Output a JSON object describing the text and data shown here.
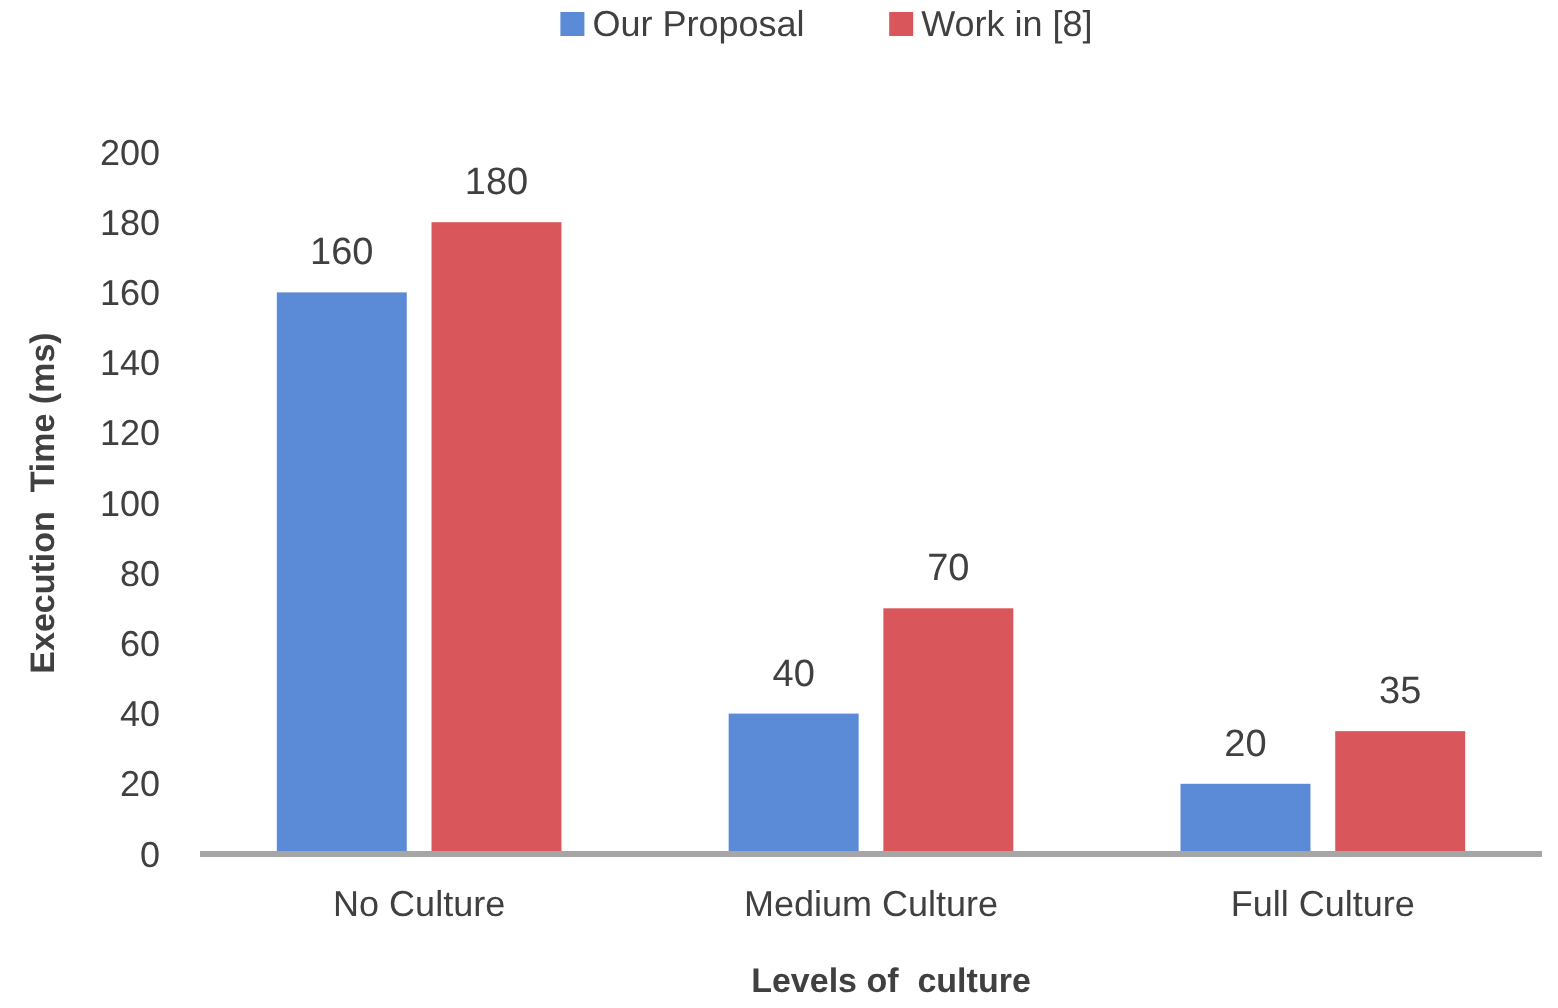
{
  "chart_data": {
    "type": "bar",
    "xlabel": "Levels of  culture",
    "ylabel": "Execution  Time (ms)",
    "categories": [
      "No Culture",
      "Medium Culture",
      "Full Culture"
    ],
    "series": [
      {
        "name": "Our Proposal",
        "color": "#5b8bd6",
        "values": [
          160,
          40,
          20
        ]
      },
      {
        "name": "Work in [8]",
        "color": "#d9575a",
        "values": [
          180,
          70,
          35
        ]
      }
    ],
    "ylim": [
      0,
      200
    ],
    "yticks": [
      0,
      20,
      40,
      60,
      80,
      100,
      120,
      140,
      160,
      180,
      200
    ],
    "grid": false,
    "legend": "top",
    "data_labels": true
  }
}
